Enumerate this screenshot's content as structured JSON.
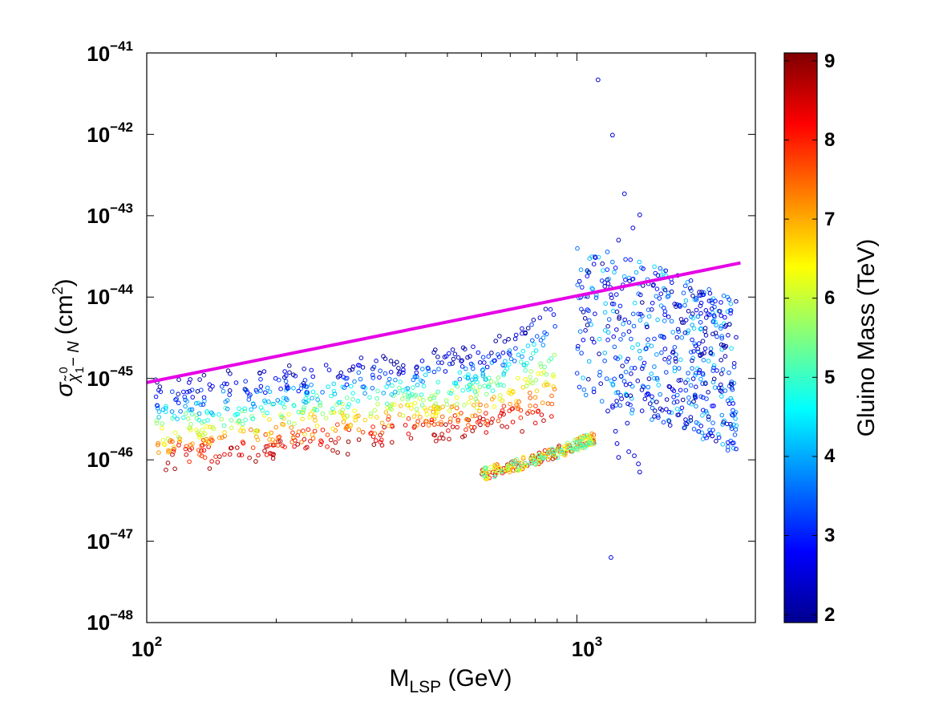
{
  "chart_data": {
    "type": "scatter",
    "xlabel": {
      "main": "M",
      "sub": "LSP",
      "unit": " (GeV)"
    },
    "ylabel": {
      "sigma": "σ",
      "chi": "χ̃",
      "chi_sup": "0",
      "chi_sub": "1",
      "suffix": "− N",
      "unit": "(cm",
      "unit_sup": "2",
      "unit_close": ")"
    },
    "xscale": "log",
    "yscale": "log",
    "xlim": [
      100,
      2600
    ],
    "ylim_exp": [
      -48,
      -41
    ],
    "x_ticks": [
      {
        "base": "10",
        "exp": "2",
        "value": 100
      },
      {
        "base": "10",
        "exp": "3",
        "value": 1000
      }
    ],
    "y_ticks": [
      {
        "base": "10",
        "exp": "−41",
        "value": -41
      },
      {
        "base": "10",
        "exp": "−42",
        "value": -42
      },
      {
        "base": "10",
        "exp": "−43",
        "value": -43
      },
      {
        "base": "10",
        "exp": "−44",
        "value": -44
      },
      {
        "base": "10",
        "exp": "−45",
        "value": -45
      },
      {
        "base": "10",
        "exp": "−46",
        "value": -46
      },
      {
        "base": "10",
        "exp": "−47",
        "value": -47
      },
      {
        "base": "10",
        "exp": "−48",
        "value": -48
      }
    ],
    "limit_line": {
      "color": "#e600e6",
      "points": [
        [
          100,
          -45.05
        ],
        [
          2400,
          -43.58
        ]
      ]
    },
    "colorbar": {
      "label": "Gluino Mass (TeV)",
      "range": [
        1.9,
        9.1
      ],
      "ticks": [
        "2",
        "3",
        "4",
        "5",
        "6",
        "7",
        "8",
        "9"
      ],
      "colormap": "jet"
    },
    "outliers": [
      {
        "x": 1120,
        "y_exp": -41.33,
        "m": 2.5
      },
      {
        "x": 1210,
        "y_exp": -42.01,
        "m": 2.5
      },
      {
        "x": 1290,
        "y_exp": -42.73,
        "m": 2.5
      },
      {
        "x": 1400,
        "y_exp": -42.99,
        "m": 2.5
      },
      {
        "x": 1350,
        "y_exp": -43.15,
        "m": 2.5
      },
      {
        "x": 1250,
        "y_exp": -43.3,
        "m": 2.5
      },
      {
        "x": 1200,
        "y_exp": -47.2,
        "m": 2.5
      },
      {
        "x": 1240,
        "y_exp": -45.8,
        "m": 2.5
      },
      {
        "x": 1320,
        "y_exp": -45.9,
        "m": 2.5
      },
      {
        "x": 1360,
        "y_exp": -45.95,
        "m": 2.5
      },
      {
        "x": 1390,
        "y_exp": -46.05,
        "m": 2.5
      },
      {
        "x": 1400,
        "y_exp": -46.15,
        "m": 2.5
      },
      {
        "x": 1270,
        "y_exp": -45.25,
        "m": 2.5
      },
      {
        "x": 1230,
        "y_exp": -45.65,
        "m": 2.5
      },
      {
        "x": 1180,
        "y_exp": -45.4,
        "m": 2.5
      },
      {
        "x": 1310,
        "y_exp": -45.55,
        "m": 2.5
      },
      {
        "x": 1250,
        "y_exp": -45.97,
        "m": 2.5
      }
    ]
  }
}
